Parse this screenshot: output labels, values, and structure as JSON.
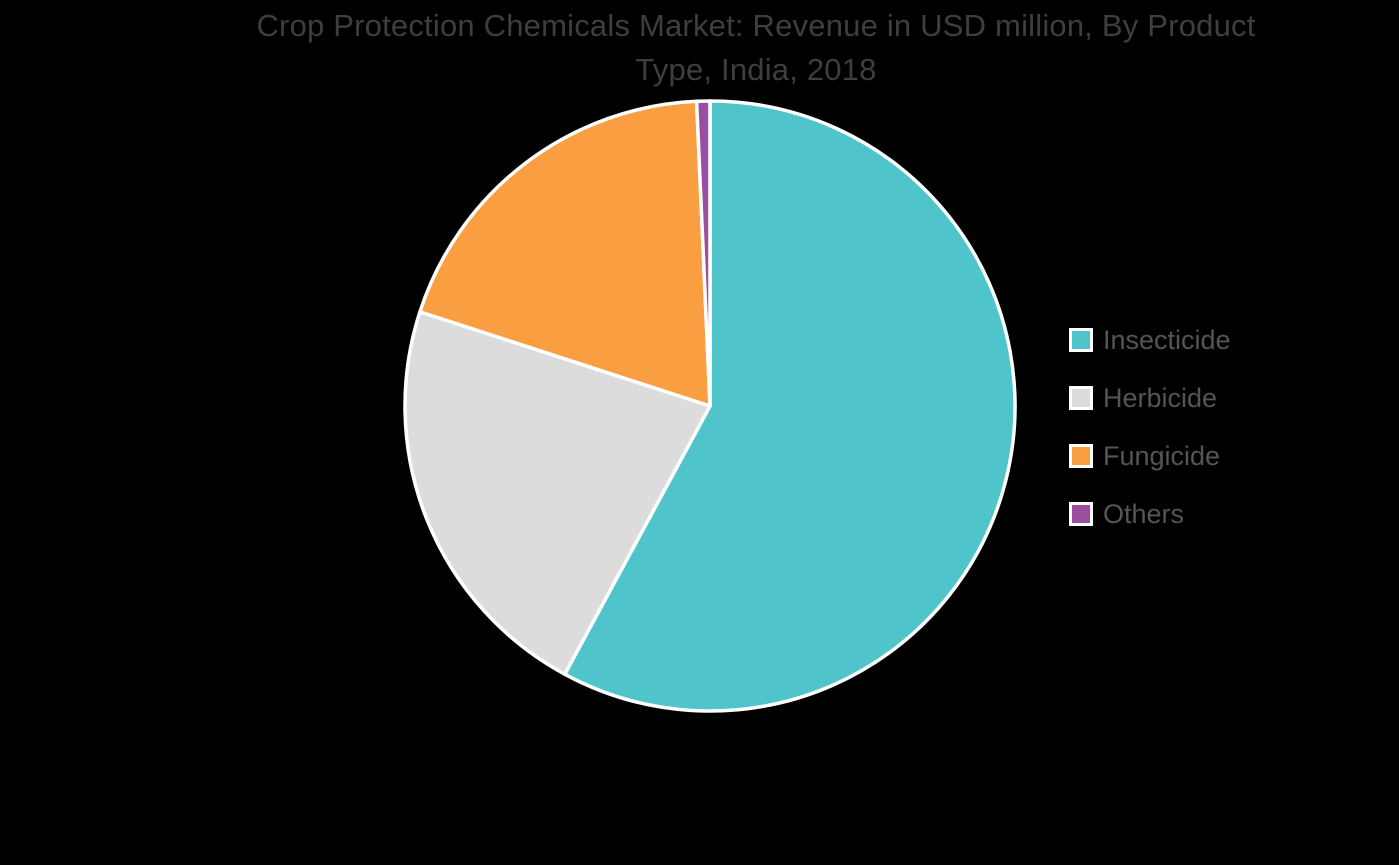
{
  "page": {
    "background": "#000000"
  },
  "chart_data": {
    "type": "pie",
    "title": "Crop Protection Chemicals Market: Revenue in USD million, By Product Type, India, 2018",
    "title_lines": [
      "Crop Protection Chemicals Market: Revenue in USD million, By Product",
      "Type, India, 2018"
    ],
    "values_are_estimated_percentages": true,
    "start_angle_deg": 0,
    "direction": "clockwise",
    "legend_position": "right",
    "series": [
      {
        "name": "Insecticide",
        "value_pct": 57.9,
        "color": "#4FC4CA"
      },
      {
        "name": "Herbicide",
        "value_pct": 22.1,
        "color": "#DCDCDC"
      },
      {
        "name": "Fungicide",
        "value_pct": 19.3,
        "color": "#FA9E42"
      },
      {
        "name": "Others",
        "value_pct": 0.7,
        "color": "#9A4E9F"
      }
    ]
  },
  "style": {
    "title_color": "#3E3E3E",
    "legend_text_color": "#555555",
    "slice_border_color": "#FFFFFF",
    "legend_swatch_border_color": "#FFFFFF"
  }
}
